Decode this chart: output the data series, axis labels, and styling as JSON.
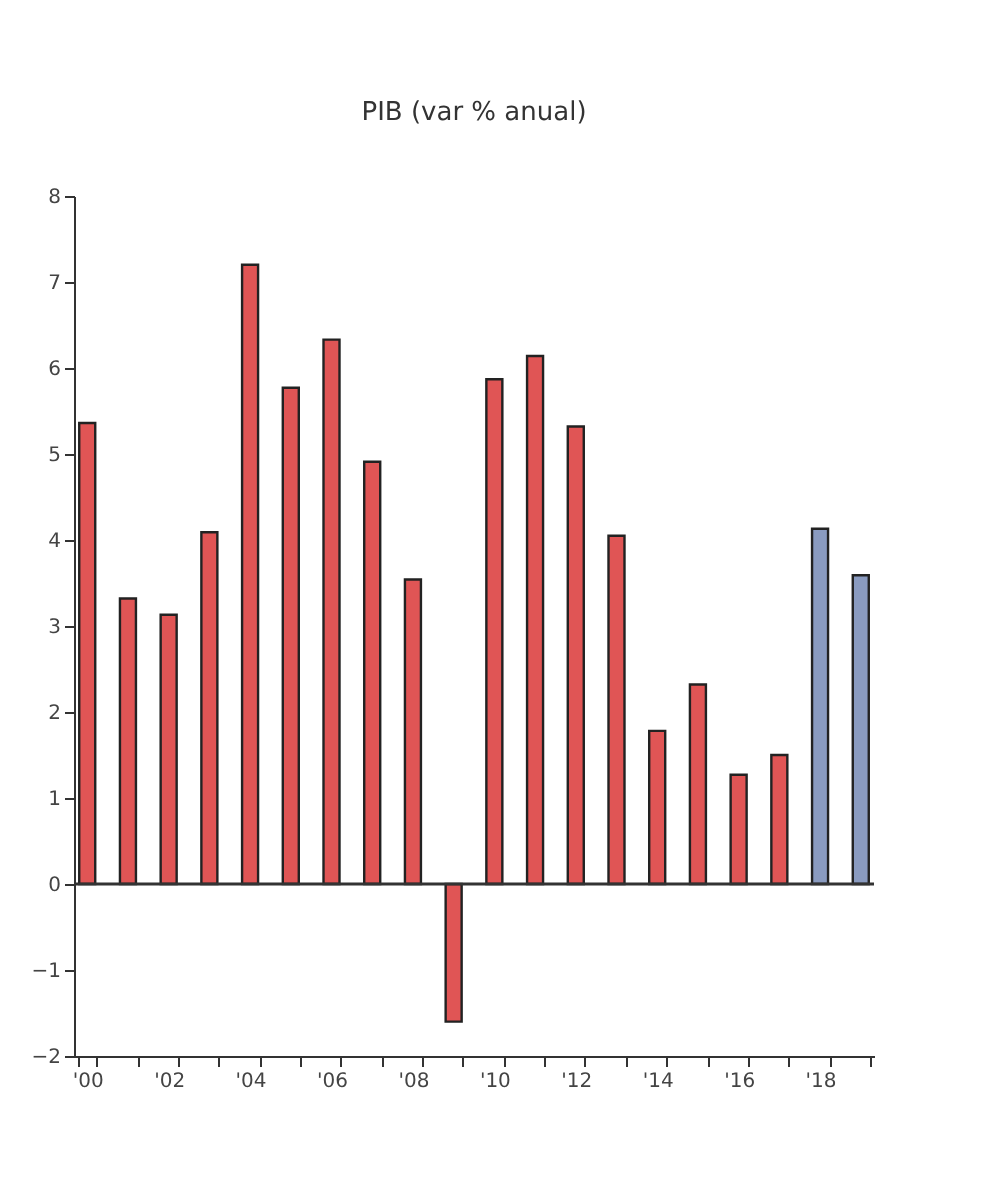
{
  "chart_data": {
    "type": "bar",
    "title": "PIB (var % anual)",
    "categories": [
      "'00",
      null,
      "'02",
      null,
      "'04",
      null,
      "'06",
      null,
      "'08",
      null,
      "'10",
      null,
      "'12",
      null,
      "'14",
      null,
      "'16",
      null,
      "'18",
      null
    ],
    "values": [
      5.36,
      3.32,
      3.13,
      4.09,
      7.2,
      5.77,
      6.33,
      4.91,
      3.54,
      -1.6,
      5.87,
      6.14,
      5.32,
      4.05,
      1.78,
      2.32,
      1.27,
      1.5,
      4.13,
      3.59
    ],
    "colors": [
      "#e05555",
      "#e05555",
      "#e05555",
      "#e05555",
      "#e05555",
      "#e05555",
      "#e05555",
      "#e05555",
      "#e05555",
      "#e05555",
      "#e05555",
      "#e05555",
      "#e05555",
      "#e05555",
      "#e05555",
      "#e05555",
      "#e05555",
      "#e05555",
      "#8a9bc0",
      "#8a9bc0"
    ],
    "ylim": [
      -2,
      8
    ],
    "yticks": [
      -2,
      -1,
      0,
      1,
      2,
      3,
      4,
      5,
      6,
      7,
      8
    ],
    "ref_lines": [
      {
        "axis": "y",
        "value": 0,
        "color": "#333333"
      }
    ],
    "grid": false
  }
}
